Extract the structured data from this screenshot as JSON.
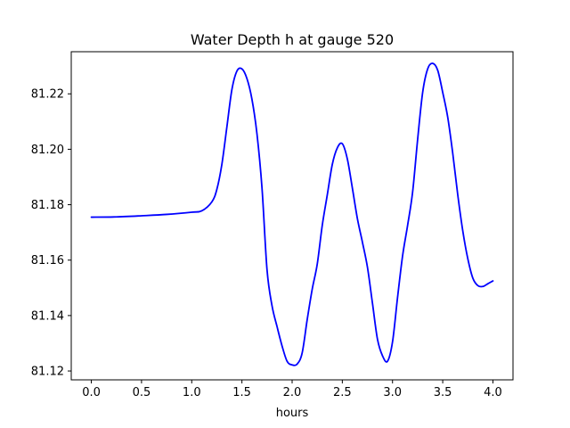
{
  "chart_data": {
    "type": "line",
    "title": "Water Depth h at gauge 520",
    "xlabel": "hours",
    "ylabel": "",
    "xlim": [
      -0.2,
      4.2
    ],
    "ylim": [
      81.1168,
      81.2352
    ],
    "grid": false,
    "x_ticks": [
      0.0,
      0.5,
      1.0,
      1.5,
      2.0,
      2.5,
      3.0,
      3.5,
      4.0
    ],
    "x_tick_labels": [
      "0.0",
      "0.5",
      "1.0",
      "1.5",
      "2.0",
      "2.5",
      "3.0",
      "3.5",
      "4.0"
    ],
    "y_ticks": [
      81.12,
      81.14,
      81.16,
      81.18,
      81.2,
      81.22
    ],
    "y_tick_labels": [
      "81.12",
      "81.14",
      "81.16",
      "81.18",
      "81.20",
      "81.22"
    ],
    "series": [
      {
        "color": "#0000ff",
        "x": [
          0.0,
          0.25,
          0.5,
          0.75,
          1.0,
          1.1,
          1.2,
          1.25,
          1.3,
          1.35,
          1.4,
          1.45,
          1.5,
          1.55,
          1.6,
          1.65,
          1.7,
          1.75,
          1.8,
          1.85,
          1.9,
          1.95,
          2.0,
          2.05,
          2.1,
          2.15,
          2.2,
          2.25,
          2.3,
          2.35,
          2.4,
          2.45,
          2.5,
          2.55,
          2.6,
          2.65,
          2.7,
          2.75,
          2.8,
          2.85,
          2.9,
          2.95,
          3.0,
          3.05,
          3.1,
          3.15,
          3.2,
          3.25,
          3.3,
          3.35,
          3.4,
          3.45,
          3.5,
          3.55,
          3.6,
          3.65,
          3.7,
          3.75,
          3.8,
          3.85,
          3.9,
          3.95,
          4.0
        ],
        "y": [
          81.1755,
          81.1756,
          81.176,
          81.1765,
          81.1773,
          81.1778,
          81.181,
          81.1855,
          81.1945,
          81.208,
          81.2215,
          81.2282,
          81.229,
          81.2255,
          81.218,
          81.2055,
          81.186,
          81.1565,
          81.1435,
          81.136,
          81.129,
          81.1235,
          81.1222,
          81.1225,
          81.1265,
          81.1385,
          81.1495,
          81.1585,
          81.1725,
          81.1835,
          81.1945,
          81.2005,
          81.202,
          81.1965,
          81.186,
          81.175,
          81.1665,
          81.1575,
          81.1445,
          81.1315,
          81.1255,
          81.1235,
          81.1305,
          81.1465,
          81.1615,
          81.1725,
          81.1845,
          81.2035,
          81.2205,
          81.229,
          81.231,
          81.2285,
          81.2205,
          81.2115,
          81.1985,
          81.1835,
          81.1705,
          81.1605,
          81.1535,
          81.1508,
          81.1505,
          81.1515,
          81.1525
        ]
      }
    ]
  }
}
